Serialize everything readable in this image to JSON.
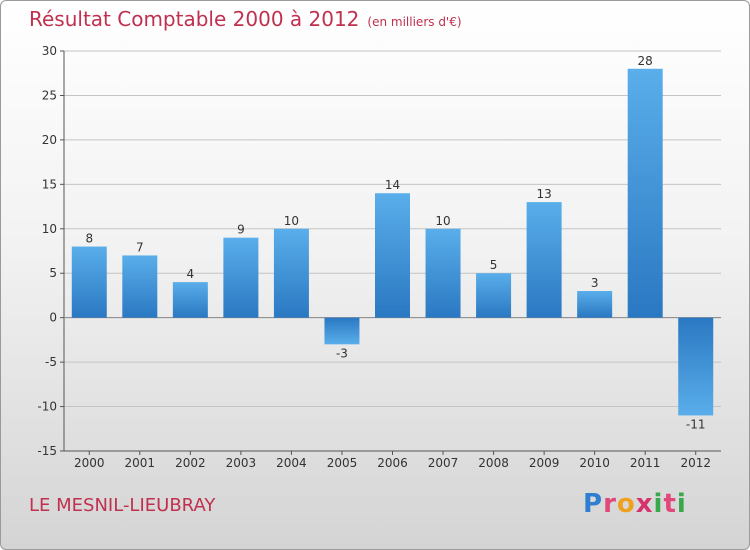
{
  "chart_data": {
    "type": "bar",
    "title": "Résultat Comptable 2000 à 2012",
    "subtitle": "(en milliers d'€)",
    "categories": [
      "2000",
      "2001",
      "2002",
      "2003",
      "2004",
      "2005",
      "2006",
      "2007",
      "2008",
      "2009",
      "2010",
      "2011",
      "2012"
    ],
    "values": [
      8,
      7,
      4,
      9,
      10,
      -3,
      14,
      10,
      5,
      13,
      3,
      28,
      -11
    ],
    "value_labels": [
      "8",
      "7",
      "4",
      "9",
      "10",
      "-3",
      "14",
      "10",
      "5",
      "13",
      "3",
      "28",
      "-11"
    ],
    "ylim": [
      -15,
      30
    ],
    "yticks": [
      -15,
      -10,
      -5,
      0,
      5,
      10,
      15,
      20,
      25,
      30
    ],
    "grid": true,
    "bar_color": "#3b8fd6"
  },
  "footer": {
    "commune": "LE MESNIL-LIEUBRAY",
    "logo_letters": [
      "P",
      "r",
      "o",
      "x",
      "i",
      "t",
      "i"
    ],
    "logo_colors": [
      "#2f7fd0",
      "#e0487a",
      "#f0a020",
      "#d6336c",
      "#38a84a",
      "#e0487a",
      "#38a84a"
    ]
  },
  "colors": {
    "accent": "#c0304f"
  }
}
